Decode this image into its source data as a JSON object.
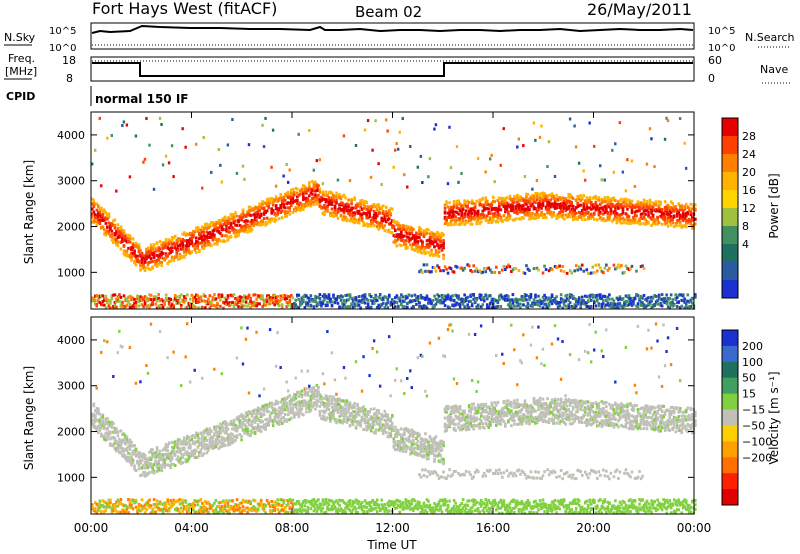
{
  "header": {
    "station": "Fort Hays West (fitACF)",
    "beam": "Beam 02",
    "date": "26/May/2011"
  },
  "strips": {
    "nsky_label": "N.Sky",
    "nsearch_label": "N.Search",
    "noise_top_tick": "10^5",
    "noise_bottom_tick": "10^0",
    "freq_label_line1": "Freq.",
    "freq_label_line2": "[MHz]",
    "freq_ticks": [
      "18",
      "8"
    ],
    "nave_label": "Nave",
    "nave_ticks": [
      "60",
      "0"
    ],
    "cpid_label": "CPID",
    "cpid_value": "normal 150 IF"
  },
  "colorbars": {
    "power": {
      "title": "Power [dB]",
      "ticks": [
        "28",
        "24",
        "20",
        "16",
        "12",
        "8",
        "4"
      ],
      "colors": [
        "#e60000",
        "#ff4000",
        "#ff8000",
        "#ffb300",
        "#ffd500",
        "#a0c040",
        "#409060",
        "#207060",
        "#2a5aa0",
        "#1a30d0"
      ]
    },
    "velocity": {
      "title": "Velocity [m s⁻¹]",
      "ticks": [
        "200",
        "100",
        "50",
        "15",
        "−15",
        "−50",
        "−100",
        "−200"
      ],
      "colors": [
        "#1a30d0",
        "#3a6ad0",
        "#207060",
        "#40a060",
        "#80d040",
        "#c0c0b8",
        "#ffd000",
        "#ffa000",
        "#ff7000",
        "#ff2000",
        "#e00000"
      ]
    }
  },
  "chart_data": [
    {
      "type": "heatmap",
      "name": "power",
      "ylabel": "Slant Range [km]",
      "yticks": [
        1000,
        2000,
        3000,
        4000
      ],
      "ylim": [
        200,
        4500
      ],
      "xlim_hours": [
        0,
        24
      ],
      "quantity": "Power [dB]"
    },
    {
      "type": "heatmap",
      "name": "velocity",
      "ylabel": "Slant Range [km]",
      "yticks": [
        1000,
        2000,
        3000,
        4000
      ],
      "ylim": [
        200,
        4500
      ],
      "xlim_hours": [
        0,
        24
      ],
      "quantity": "Velocity [m s⁻¹]"
    }
  ],
  "xaxis": {
    "label": "Time UT",
    "ticks": [
      "00:00",
      "04:00",
      "08:00",
      "12:00",
      "16:00",
      "20:00",
      "00:00"
    ]
  }
}
